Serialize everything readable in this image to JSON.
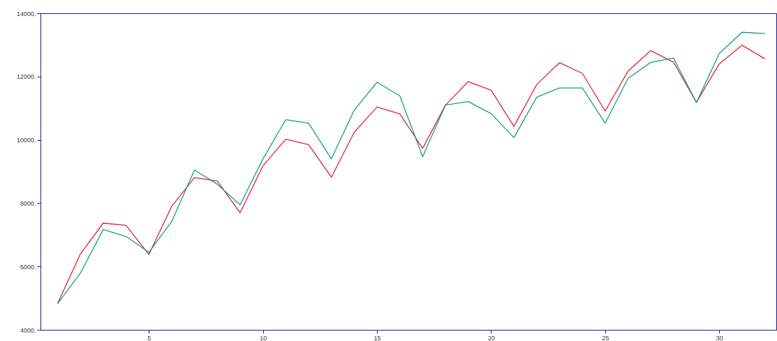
{
  "chart_data": {
    "type": "line",
    "x": [
      1,
      2,
      3,
      4,
      5,
      6,
      7,
      8,
      9,
      10,
      11,
      12,
      13,
      14,
      15,
      16,
      17,
      18,
      19,
      20,
      21,
      22,
      23,
      24,
      25,
      26,
      27,
      28,
      29,
      30,
      31,
      32
    ],
    "series": [
      {
        "color": "#e0203c",
        "values": [
          4830,
          6400,
          7370,
          7300,
          6380,
          7900,
          8810,
          8700,
          7700,
          9180,
          10020,
          9850,
          8820,
          10240,
          11040,
          10820,
          9730,
          11100,
          11840,
          11570,
          10430,
          11750,
          12440,
          12100,
          10910,
          12170,
          12820,
          12450,
          11190,
          12400,
          12990,
          12560
        ]
      },
      {
        "color": "#10a080",
        "values": [
          4830,
          5790,
          7170,
          6950,
          6450,
          7420,
          9050,
          8600,
          7950,
          9400,
          10640,
          10530,
          9400,
          10940,
          11820,
          11390,
          9470,
          11100,
          11210,
          10830,
          10070,
          11350,
          11640,
          11640,
          10530,
          11940,
          12450,
          12580,
          11180,
          12730,
          13400,
          13360
        ]
      }
    ],
    "xlim": [
      0.25,
      32.5
    ],
    "xticks": [
      5,
      10,
      15,
      20,
      25,
      30
    ],
    "ylim": [
      4000,
      14000
    ],
    "yticks": [
      {
        "value": 4000,
        "label": "4000."
      },
      {
        "value": 6000,
        "label": "6000."
      },
      {
        "value": 8000,
        "label": "8000."
      },
      {
        "value": 10000,
        "label": "10000."
      },
      {
        "value": 12000,
        "label": "12000."
      },
      {
        "value": 14000,
        "label": "14000."
      }
    ],
    "grid": false
  }
}
